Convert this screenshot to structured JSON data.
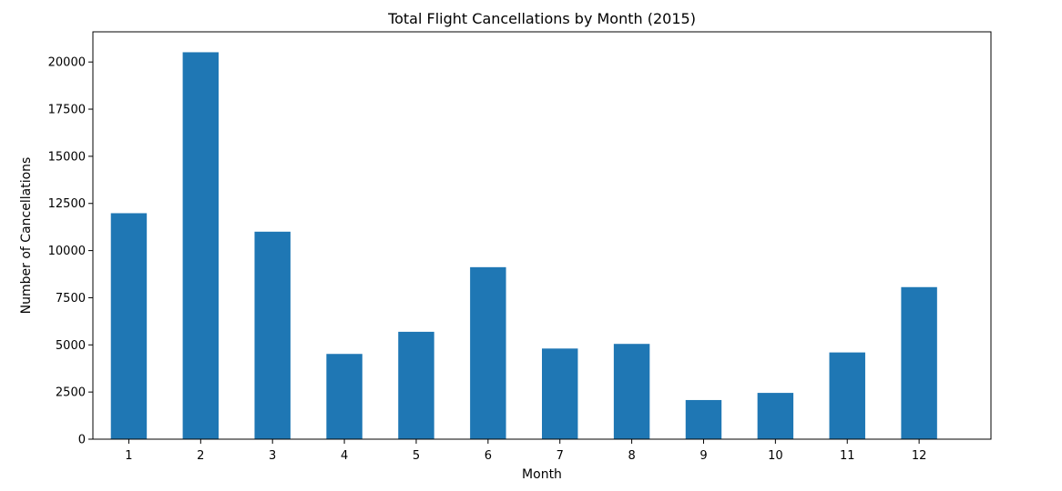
{
  "chart_data": {
    "type": "bar",
    "title": "Total Flight Cancellations by Month (2015)",
    "xlabel": "Month",
    "ylabel": "Number of Cancellations",
    "categories": [
      "1",
      "2",
      "3",
      "4",
      "5",
      "6",
      "7",
      "8",
      "9",
      "10",
      "11",
      "12"
    ],
    "values": [
      11982,
      20517,
      11002,
      4520,
      5694,
      9120,
      4806,
      5052,
      2075,
      2454,
      4599,
      8063
    ],
    "ylim": [
      0,
      21600
    ],
    "yticks": [
      0,
      2500,
      5000,
      7500,
      10000,
      12500,
      15000,
      17500,
      20000
    ],
    "ytick_labels": [
      "0",
      "2500",
      "5000",
      "7500",
      "10000",
      "12500",
      "15000",
      "17500",
      "20000"
    ],
    "grid": false,
    "legend": "none",
    "bar_color": "#1f77b4"
  }
}
